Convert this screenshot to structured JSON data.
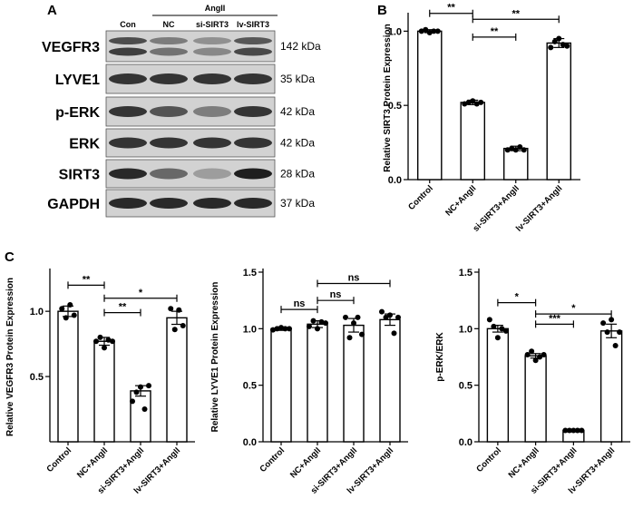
{
  "panels": {
    "a": "A",
    "b": "B",
    "c": "C"
  },
  "blot": {
    "top_group": "AngII",
    "lanes": [
      "Con",
      "NC",
      "si-SIRT3",
      "lv-SIRT3"
    ],
    "rows": [
      {
        "protein": "VEGFR3",
        "size": "142 kDa",
        "intensity": [
          0.8,
          0.55,
          0.45,
          0.75
        ]
      },
      {
        "protein": "LYVE1",
        "size": "35 kDa",
        "intensity": [
          0.85,
          0.85,
          0.85,
          0.85
        ]
      },
      {
        "protein": "p-ERK",
        "size": "42 kDa",
        "intensity": [
          0.85,
          0.7,
          0.5,
          0.85
        ]
      },
      {
        "protein": "ERK",
        "size": "42 kDa",
        "intensity": [
          0.85,
          0.85,
          0.85,
          0.85
        ]
      },
      {
        "protein": "SIRT3",
        "size": "28 kDa",
        "intensity": [
          0.9,
          0.6,
          0.35,
          0.95
        ]
      },
      {
        "protein": "GAPDH",
        "size": "37 kDa",
        "intensity": [
          0.9,
          0.9,
          0.9,
          0.9
        ]
      }
    ]
  },
  "chart_data": [
    {
      "id": "sirt3",
      "panel": "B",
      "type": "bar",
      "title": "",
      "ylabel": "Relative SIRT3 Protein Expression",
      "categories": [
        "Control",
        "NC+AngII",
        "si-SIRT3+AngII",
        "lv-SIRT3+AngII"
      ],
      "values": [
        1.0,
        0.52,
        0.21,
        0.92
      ],
      "errors": [
        0.01,
        0.015,
        0.015,
        0.03
      ],
      "points": [
        [
          1.0,
          1.01,
          0.99,
          1.0,
          1.0
        ],
        [
          0.51,
          0.52,
          0.53,
          0.51,
          0.52
        ],
        [
          0.2,
          0.21,
          0.2,
          0.22,
          0.2
        ],
        [
          0.89,
          0.93,
          0.95,
          0.91,
          0.9
        ]
      ],
      "ylim": [
        0,
        1.1
      ],
      "yticks": [
        0.0,
        0.5,
        1.0
      ],
      "ytick_labels": [
        "0.0",
        "0.5",
        "1.0"
      ],
      "sig": [
        {
          "from": 0,
          "to": 1,
          "label": "**",
          "y": 1.12
        },
        {
          "from": 1,
          "to": 2,
          "label": "**",
          "y": 0.96
        },
        {
          "from": 1,
          "to": 3,
          "label": "**",
          "y": 1.08
        }
      ]
    },
    {
      "id": "vegfr3",
      "panel": "C",
      "type": "bar",
      "title": "",
      "ylabel": "Relative VEGFR3 Protein Expression",
      "categories": [
        "Control",
        "NC+AngII",
        "si-SIRT3+AngII",
        "lv-SIRT3+AngII"
      ],
      "values": [
        1.0,
        0.77,
        0.39,
        0.95
      ],
      "errors": [
        0.04,
        0.03,
        0.04,
        0.05
      ],
      "points": [
        [
          1.02,
          0.95,
          1.05,
          0.97
        ],
        [
          0.77,
          0.8,
          0.72,
          0.78,
          0.77
        ],
        [
          0.31,
          0.38,
          0.42,
          0.25,
          0.43
        ],
        [
          1.02,
          0.86,
          1.01,
          0.89
        ]
      ],
      "ylim": [
        0,
        1.3
      ],
      "yticks": [
        0.5,
        1.0
      ],
      "ytick_labels": [
        "0.5",
        "1.0"
      ],
      "sig": [
        {
          "from": 0,
          "to": 1,
          "label": "**",
          "y": 1.2
        },
        {
          "from": 1,
          "to": 2,
          "label": "**",
          "y": 0.99
        },
        {
          "from": 1,
          "to": 3,
          "label": "*",
          "y": 1.1
        }
      ]
    },
    {
      "id": "lyve1",
      "panel": "C",
      "type": "bar",
      "title": "",
      "ylabel": "Relative LYVE1 Protein Expression",
      "categories": [
        "Control",
        "NC+AngII",
        "si-SIRT3+AngII",
        "lv-SIRT3+AngII"
      ],
      "values": [
        1.0,
        1.04,
        1.03,
        1.08
      ],
      "errors": [
        0.015,
        0.03,
        0.06,
        0.05
      ],
      "points": [
        [
          0.99,
          1.0,
          1.01,
          1.0,
          1.0
        ],
        [
          1.02,
          1.07,
          1.0,
          1.06,
          1.05
        ],
        [
          1.1,
          0.92,
          1.05,
          1.1,
          0.95
        ],
        [
          1.15,
          1.1,
          1.12,
          0.96,
          1.1
        ]
      ],
      "ylim": [
        0,
        1.5
      ],
      "yticks": [
        0.0,
        0.5,
        1.0,
        1.5
      ],
      "ytick_labels": [
        "0.0",
        "0.5",
        "1.0",
        "1.5"
      ],
      "sig": [
        {
          "from": 0,
          "to": 1,
          "label": "ns",
          "y": 1.17
        },
        {
          "from": 1,
          "to": 2,
          "label": "ns",
          "y": 1.25
        },
        {
          "from": 1,
          "to": 3,
          "label": "ns",
          "y": 1.4
        }
      ]
    },
    {
      "id": "perk",
      "panel": "C",
      "type": "bar",
      "title": "",
      "ylabel": "p-ERK/ERK",
      "categories": [
        "Control",
        "NC+AngII",
        "si-SIRT3+AngII",
        "lv-SIRT3+AngII"
      ],
      "values": [
        1.0,
        0.76,
        0.1,
        0.98
      ],
      "errors": [
        0.03,
        0.02,
        0.003,
        0.06
      ],
      "points": [
        [
          1.08,
          1.02,
          0.92,
          1.0,
          0.98
        ],
        [
          0.77,
          0.8,
          0.72,
          0.75,
          0.77
        ],
        [
          0.1,
          0.1,
          0.1,
          0.1,
          0.1
        ],
        [
          1.05,
          0.97,
          1.08,
          0.85,
          0.97
        ]
      ],
      "ylim": [
        0,
        1.5
      ],
      "yticks": [
        0.0,
        0.5,
        1.0,
        1.5
      ],
      "ytick_labels": [
        "0.0",
        "0.5",
        "1.0",
        "1.5"
      ],
      "sig": [
        {
          "from": 0,
          "to": 1,
          "label": "*",
          "y": 1.23
        },
        {
          "from": 1,
          "to": 2,
          "label": "***",
          "y": 1.04
        },
        {
          "from": 1,
          "to": 3,
          "label": "*",
          "y": 1.13
        }
      ]
    }
  ]
}
